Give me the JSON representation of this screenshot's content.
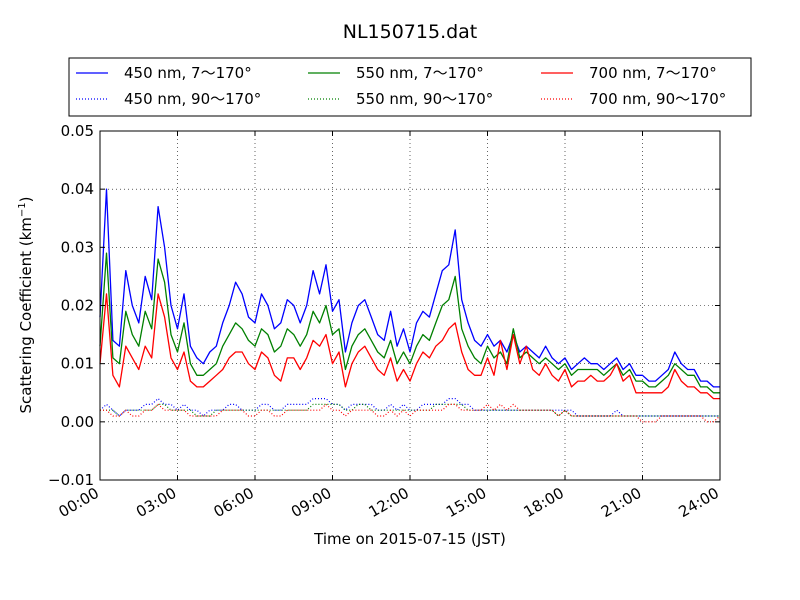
{
  "chart_data": {
    "type": "line",
    "title": "NL150715.dat",
    "xlabel": "Time on 2015-07-15 (JST)",
    "ylabel": "Scattering Coefficient (km",
    "ylabel_sup": "−1",
    "ylabel_suffix": ")",
    "xlim": [
      0,
      24
    ],
    "ylim": [
      -0.01,
      0.05
    ],
    "grid": true,
    "legend": "top, outside plot, 3 columns",
    "x_ticks": [
      0,
      3,
      6,
      9,
      12,
      15,
      18,
      21,
      24
    ],
    "x_tick_labels": [
      "00:00",
      "03:00",
      "06:00",
      "09:00",
      "12:00",
      "15:00",
      "18:00",
      "21:00",
      "24:00"
    ],
    "y_ticks": [
      -0.01,
      0.0,
      0.01,
      0.02,
      0.03,
      0.04,
      0.05
    ],
    "y_tick_labels": [
      "−0.01",
      "0.00",
      "0.01",
      "0.02",
      "0.03",
      "0.04",
      "0.05"
    ],
    "x_hours": [
      0,
      0.25,
      0.5,
      0.75,
      1,
      1.25,
      1.5,
      1.75,
      2,
      2.25,
      2.5,
      2.75,
      3,
      3.25,
      3.5,
      3.75,
      4,
      4.25,
      4.5,
      4.75,
      5,
      5.25,
      5.5,
      5.75,
      6,
      6.25,
      6.5,
      6.75,
      7,
      7.25,
      7.5,
      7.75,
      8,
      8.25,
      8.5,
      8.75,
      9,
      9.25,
      9.5,
      9.75,
      10,
      10.25,
      10.5,
      10.75,
      11,
      11.25,
      11.5,
      11.75,
      12,
      12.25,
      12.5,
      12.75,
      13,
      13.25,
      13.5,
      13.75,
      14,
      14.25,
      14.5,
      14.75,
      15,
      15.25,
      15.5,
      15.75,
      16,
      16.25,
      16.5,
      16.75,
      17,
      17.25,
      17.5,
      17.75,
      18,
      18.25,
      18.5,
      18.75,
      19,
      19.25,
      19.5,
      19.75,
      20,
      20.25,
      20.5,
      20.75,
      21,
      21.25,
      21.5,
      21.75,
      22,
      22.25,
      22.5,
      22.75,
      23,
      23.25,
      23.5,
      23.75,
      24
    ],
    "series": [
      {
        "name": "450 nm, 7～170°",
        "color": "#0000ff",
        "style": "solid",
        "values": [
          0.018,
          0.04,
          0.014,
          0.013,
          0.026,
          0.02,
          0.017,
          0.025,
          0.021,
          0.037,
          0.03,
          0.02,
          0.016,
          0.022,
          0.013,
          0.011,
          0.01,
          0.012,
          0.013,
          0.017,
          0.02,
          0.024,
          0.022,
          0.018,
          0.017,
          0.022,
          0.02,
          0.016,
          0.017,
          0.021,
          0.02,
          0.017,
          0.02,
          0.026,
          0.022,
          0.027,
          0.019,
          0.021,
          0.012,
          0.017,
          0.02,
          0.021,
          0.018,
          0.015,
          0.014,
          0.019,
          0.013,
          0.016,
          0.012,
          0.017,
          0.019,
          0.018,
          0.022,
          0.026,
          0.027,
          0.033,
          0.021,
          0.017,
          0.014,
          0.013,
          0.015,
          0.013,
          0.014,
          0.012,
          0.015,
          0.012,
          0.013,
          0.012,
          0.011,
          0.013,
          0.011,
          0.01,
          0.011,
          0.009,
          0.01,
          0.011,
          0.01,
          0.01,
          0.009,
          0.01,
          0.011,
          0.009,
          0.01,
          0.008,
          0.008,
          0.007,
          0.007,
          0.008,
          0.009,
          0.012,
          0.01,
          0.009,
          0.009,
          0.007,
          0.007,
          0.006,
          0.006
        ]
      },
      {
        "name": "450 nm, 90～170°",
        "color": "#0000ff",
        "style": "dotted",
        "values": [
          0.002,
          0.003,
          0.002,
          0.001,
          0.002,
          0.002,
          0.002,
          0.003,
          0.003,
          0.004,
          0.003,
          0.003,
          0.002,
          0.003,
          0.002,
          0.002,
          0.001,
          0.002,
          0.002,
          0.002,
          0.003,
          0.003,
          0.002,
          0.002,
          0.002,
          0.003,
          0.003,
          0.002,
          0.002,
          0.003,
          0.003,
          0.003,
          0.003,
          0.004,
          0.004,
          0.004,
          0.003,
          0.003,
          0.002,
          0.003,
          0.003,
          0.003,
          0.003,
          0.002,
          0.002,
          0.003,
          0.002,
          0.003,
          0.002,
          0.002,
          0.003,
          0.003,
          0.003,
          0.003,
          0.004,
          0.004,
          0.003,
          0.003,
          0.002,
          0.002,
          0.002,
          0.002,
          0.002,
          0.002,
          0.002,
          0.002,
          0.002,
          0.002,
          0.002,
          0.002,
          0.002,
          0.002,
          0.002,
          0.002,
          0.001,
          0.001,
          0.001,
          0.001,
          0.001,
          0.001,
          0.002,
          0.001,
          0.001,
          0.001,
          0.001,
          0.001,
          0.001,
          0.001,
          0.001,
          0.001,
          0.001,
          0.001,
          0.001,
          0.001,
          0.001,
          0.001,
          0.001
        ]
      },
      {
        "name": "550 nm, 7～170°",
        "color": "#008000",
        "style": "solid",
        "values": [
          0.013,
          0.029,
          0.011,
          0.01,
          0.019,
          0.015,
          0.013,
          0.019,
          0.016,
          0.028,
          0.024,
          0.015,
          0.012,
          0.017,
          0.01,
          0.008,
          0.008,
          0.009,
          0.01,
          0.013,
          0.015,
          0.017,
          0.016,
          0.014,
          0.013,
          0.016,
          0.015,
          0.012,
          0.013,
          0.016,
          0.015,
          0.013,
          0.015,
          0.019,
          0.017,
          0.02,
          0.015,
          0.016,
          0.009,
          0.013,
          0.015,
          0.016,
          0.014,
          0.012,
          0.011,
          0.014,
          0.01,
          0.012,
          0.01,
          0.013,
          0.015,
          0.014,
          0.017,
          0.02,
          0.021,
          0.025,
          0.016,
          0.013,
          0.011,
          0.01,
          0.013,
          0.011,
          0.012,
          0.01,
          0.016,
          0.011,
          0.012,
          0.011,
          0.01,
          0.011,
          0.01,
          0.009,
          0.01,
          0.008,
          0.009,
          0.009,
          0.009,
          0.009,
          0.008,
          0.009,
          0.01,
          0.008,
          0.009,
          0.007,
          0.007,
          0.006,
          0.006,
          0.007,
          0.008,
          0.01,
          0.009,
          0.008,
          0.008,
          0.006,
          0.006,
          0.005,
          0.005
        ]
      },
      {
        "name": "550 nm, 90～170°",
        "color": "#008000",
        "style": "dotted",
        "values": [
          0.002,
          0.002,
          0.002,
          0.001,
          0.002,
          0.002,
          0.002,
          0.002,
          0.002,
          0.003,
          0.003,
          0.002,
          0.002,
          0.002,
          0.002,
          0.001,
          0.001,
          0.001,
          0.002,
          0.002,
          0.002,
          0.002,
          0.002,
          0.002,
          0.002,
          0.002,
          0.002,
          0.002,
          0.002,
          0.002,
          0.002,
          0.002,
          0.002,
          0.003,
          0.003,
          0.003,
          0.003,
          0.003,
          0.002,
          0.002,
          0.003,
          0.003,
          0.002,
          0.002,
          0.002,
          0.002,
          0.002,
          0.002,
          0.002,
          0.002,
          0.002,
          0.002,
          0.003,
          0.003,
          0.003,
          0.003,
          0.003,
          0.002,
          0.002,
          0.002,
          0.002,
          0.002,
          0.002,
          0.002,
          0.002,
          0.002,
          0.002,
          0.002,
          0.002,
          0.002,
          0.002,
          0.001,
          0.002,
          0.001,
          0.001,
          0.001,
          0.001,
          0.001,
          0.001,
          0.001,
          0.001,
          0.001,
          0.001,
          0.001,
          0.001,
          0.001,
          0.001,
          0.001,
          0.001,
          0.001,
          0.001,
          0.001,
          0.001,
          0.001,
          0.001,
          0.001,
          0.001
        ]
      },
      {
        "name": "700 nm, 7～170°",
        "color": "#ff0000",
        "style": "solid",
        "values": [
          0.01,
          0.022,
          0.008,
          0.006,
          0.013,
          0.011,
          0.009,
          0.013,
          0.011,
          0.022,
          0.018,
          0.011,
          0.009,
          0.012,
          0.007,
          0.006,
          0.006,
          0.007,
          0.008,
          0.009,
          0.011,
          0.012,
          0.012,
          0.01,
          0.009,
          0.012,
          0.011,
          0.008,
          0.007,
          0.011,
          0.011,
          0.009,
          0.011,
          0.014,
          0.013,
          0.015,
          0.01,
          0.012,
          0.006,
          0.01,
          0.012,
          0.013,
          0.011,
          0.009,
          0.008,
          0.011,
          0.007,
          0.009,
          0.007,
          0.01,
          0.012,
          0.011,
          0.013,
          0.014,
          0.016,
          0.017,
          0.012,
          0.009,
          0.008,
          0.008,
          0.011,
          0.008,
          0.014,
          0.009,
          0.015,
          0.01,
          0.013,
          0.009,
          0.008,
          0.01,
          0.008,
          0.007,
          0.009,
          0.006,
          0.007,
          0.007,
          0.008,
          0.007,
          0.007,
          0.008,
          0.01,
          0.007,
          0.008,
          0.005,
          0.005,
          0.005,
          0.005,
          0.005,
          0.006,
          0.009,
          0.007,
          0.006,
          0.006,
          0.005,
          0.005,
          0.004,
          0.004
        ]
      },
      {
        "name": "700 nm, 90～170°",
        "color": "#ff0000",
        "style": "dotted",
        "values": [
          0.002,
          0.002,
          0.001,
          0.001,
          0.002,
          0.001,
          0.001,
          0.002,
          0.002,
          0.003,
          0.002,
          0.002,
          0.002,
          0.002,
          0.001,
          0.001,
          0.001,
          0.001,
          0.001,
          0.002,
          0.002,
          0.002,
          0.002,
          0.001,
          0.001,
          0.002,
          0.002,
          0.001,
          0.001,
          0.002,
          0.002,
          0.002,
          0.002,
          0.002,
          0.002,
          0.003,
          0.002,
          0.002,
          0.001,
          0.002,
          0.002,
          0.002,
          0.002,
          0.001,
          0.001,
          0.002,
          0.001,
          0.002,
          0.001,
          0.002,
          0.002,
          0.002,
          0.002,
          0.002,
          0.003,
          0.003,
          0.002,
          0.002,
          0.002,
          0.002,
          0.003,
          0.002,
          0.003,
          0.002,
          0.003,
          0.002,
          0.002,
          0.002,
          0.002,
          0.002,
          0.002,
          0.001,
          0.002,
          0.001,
          0.001,
          0.001,
          0.001,
          0.001,
          0.001,
          0.001,
          0.001,
          0.001,
          0.001,
          0.001,
          0.0,
          0.0,
          0.0,
          0.001,
          0.001,
          0.001,
          0.001,
          0.001,
          0.001,
          0.001,
          0.0,
          0.0,
          0.001
        ]
      }
    ]
  }
}
